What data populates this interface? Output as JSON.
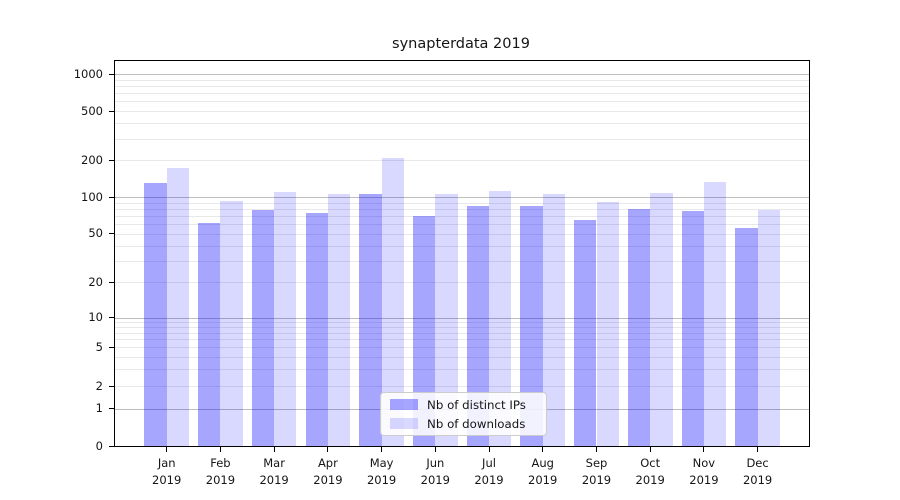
{
  "colors": {
    "ips_hex": "#a6a6ff",
    "downloads_hex": "#d9d9ff",
    "ips_fill": "rgba(0,0,255,0.35)",
    "downloads_fill": "rgba(0,0,255,0.15)",
    "grid_major": "#bdbdbd",
    "grid_minor": "#e8e8e8",
    "spine": "#000000"
  },
  "chart_data": {
    "type": "bar",
    "title": "synapterdata 2019",
    "yscale": "symlog",
    "grid": "both",
    "legend_position": "lower center",
    "ylim": [
      0,
      1100
    ],
    "y_ticks": [
      0,
      1,
      2,
      5,
      10,
      20,
      50,
      100,
      200,
      500,
      1000
    ],
    "categories": [
      "Jan 2019",
      "Feb 2019",
      "Mar 2019",
      "Apr 2019",
      "May 2019",
      "Jun 2019",
      "Jul 2019",
      "Aug 2019",
      "Sep 2019",
      "Oct 2019",
      "Nov 2019",
      "Dec 2019"
    ],
    "series": [
      {
        "name": "Nb of distinct IPs",
        "values": [
          130,
          61,
          79,
          74,
          106,
          70,
          85,
          84,
          65,
          80,
          77,
          56
        ]
      },
      {
        "name": "Nb of downloads",
        "values": [
          173,
          92,
          111,
          105,
          208,
          105,
          113,
          106,
          91,
          108,
          133,
          78
        ]
      }
    ]
  }
}
